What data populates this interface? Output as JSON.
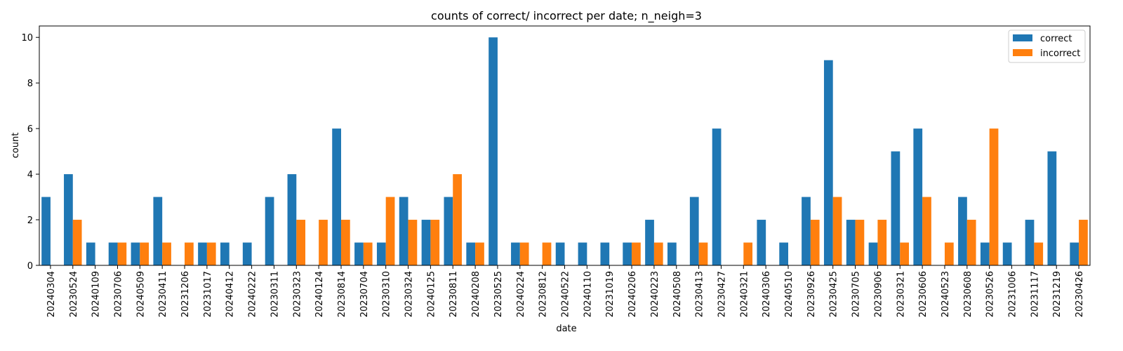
{
  "chart_data": {
    "type": "bar",
    "title": "counts of correct/ incorrect per date; n_neigh=3",
    "xlabel": "date",
    "ylabel": "count",
    "ylim": [
      0,
      10.5
    ],
    "yticks": [
      0,
      2,
      4,
      6,
      8,
      10
    ],
    "grid": false,
    "legend_position": "top-right",
    "categories": [
      "20240304",
      "20230524",
      "20240109",
      "20230706",
      "20240509",
      "20230411",
      "20231206",
      "20231017",
      "20240412",
      "20240222",
      "20230311",
      "20230323",
      "20240124",
      "20230814",
      "20230704",
      "20230310",
      "20230324",
      "20240125",
      "20230811",
      "20240208",
      "20230525",
      "20240224",
      "20230812",
      "20240522",
      "20240110",
      "20231019",
      "20240206",
      "20240223",
      "20240508",
      "20230413",
      "20230427",
      "20240321",
      "20240306",
      "20240510",
      "20230926",
      "20230425",
      "20230705",
      "20230906",
      "20230321",
      "20230606",
      "20240523",
      "20230608",
      "20230526",
      "20231006",
      "20231117",
      "20231219",
      "20230426"
    ],
    "series": [
      {
        "name": "correct",
        "color": "#1f77b4",
        "values": [
          3,
          4,
          1,
          1,
          1,
          3,
          0,
          1,
          1,
          1,
          3,
          4,
          0,
          6,
          1,
          1,
          3,
          2,
          3,
          1,
          10,
          1,
          0,
          1,
          1,
          1,
          1,
          2,
          1,
          3,
          6,
          0,
          2,
          1,
          3,
          9,
          2,
          1,
          5,
          6,
          0,
          3,
          1,
          1,
          2,
          5,
          1
        ]
      },
      {
        "name": "incorrect",
        "color": "#ff7f0e",
        "values": [
          0,
          2,
          0,
          1,
          1,
          1,
          1,
          1,
          0,
          0,
          0,
          2,
          2,
          2,
          1,
          3,
          2,
          2,
          4,
          1,
          0,
          1,
          1,
          0,
          0,
          0,
          1,
          1,
          0,
          1,
          0,
          1,
          0,
          0,
          2,
          3,
          2,
          2,
          1,
          3,
          1,
          2,
          6,
          0,
          1,
          0,
          2
        ]
      }
    ]
  }
}
